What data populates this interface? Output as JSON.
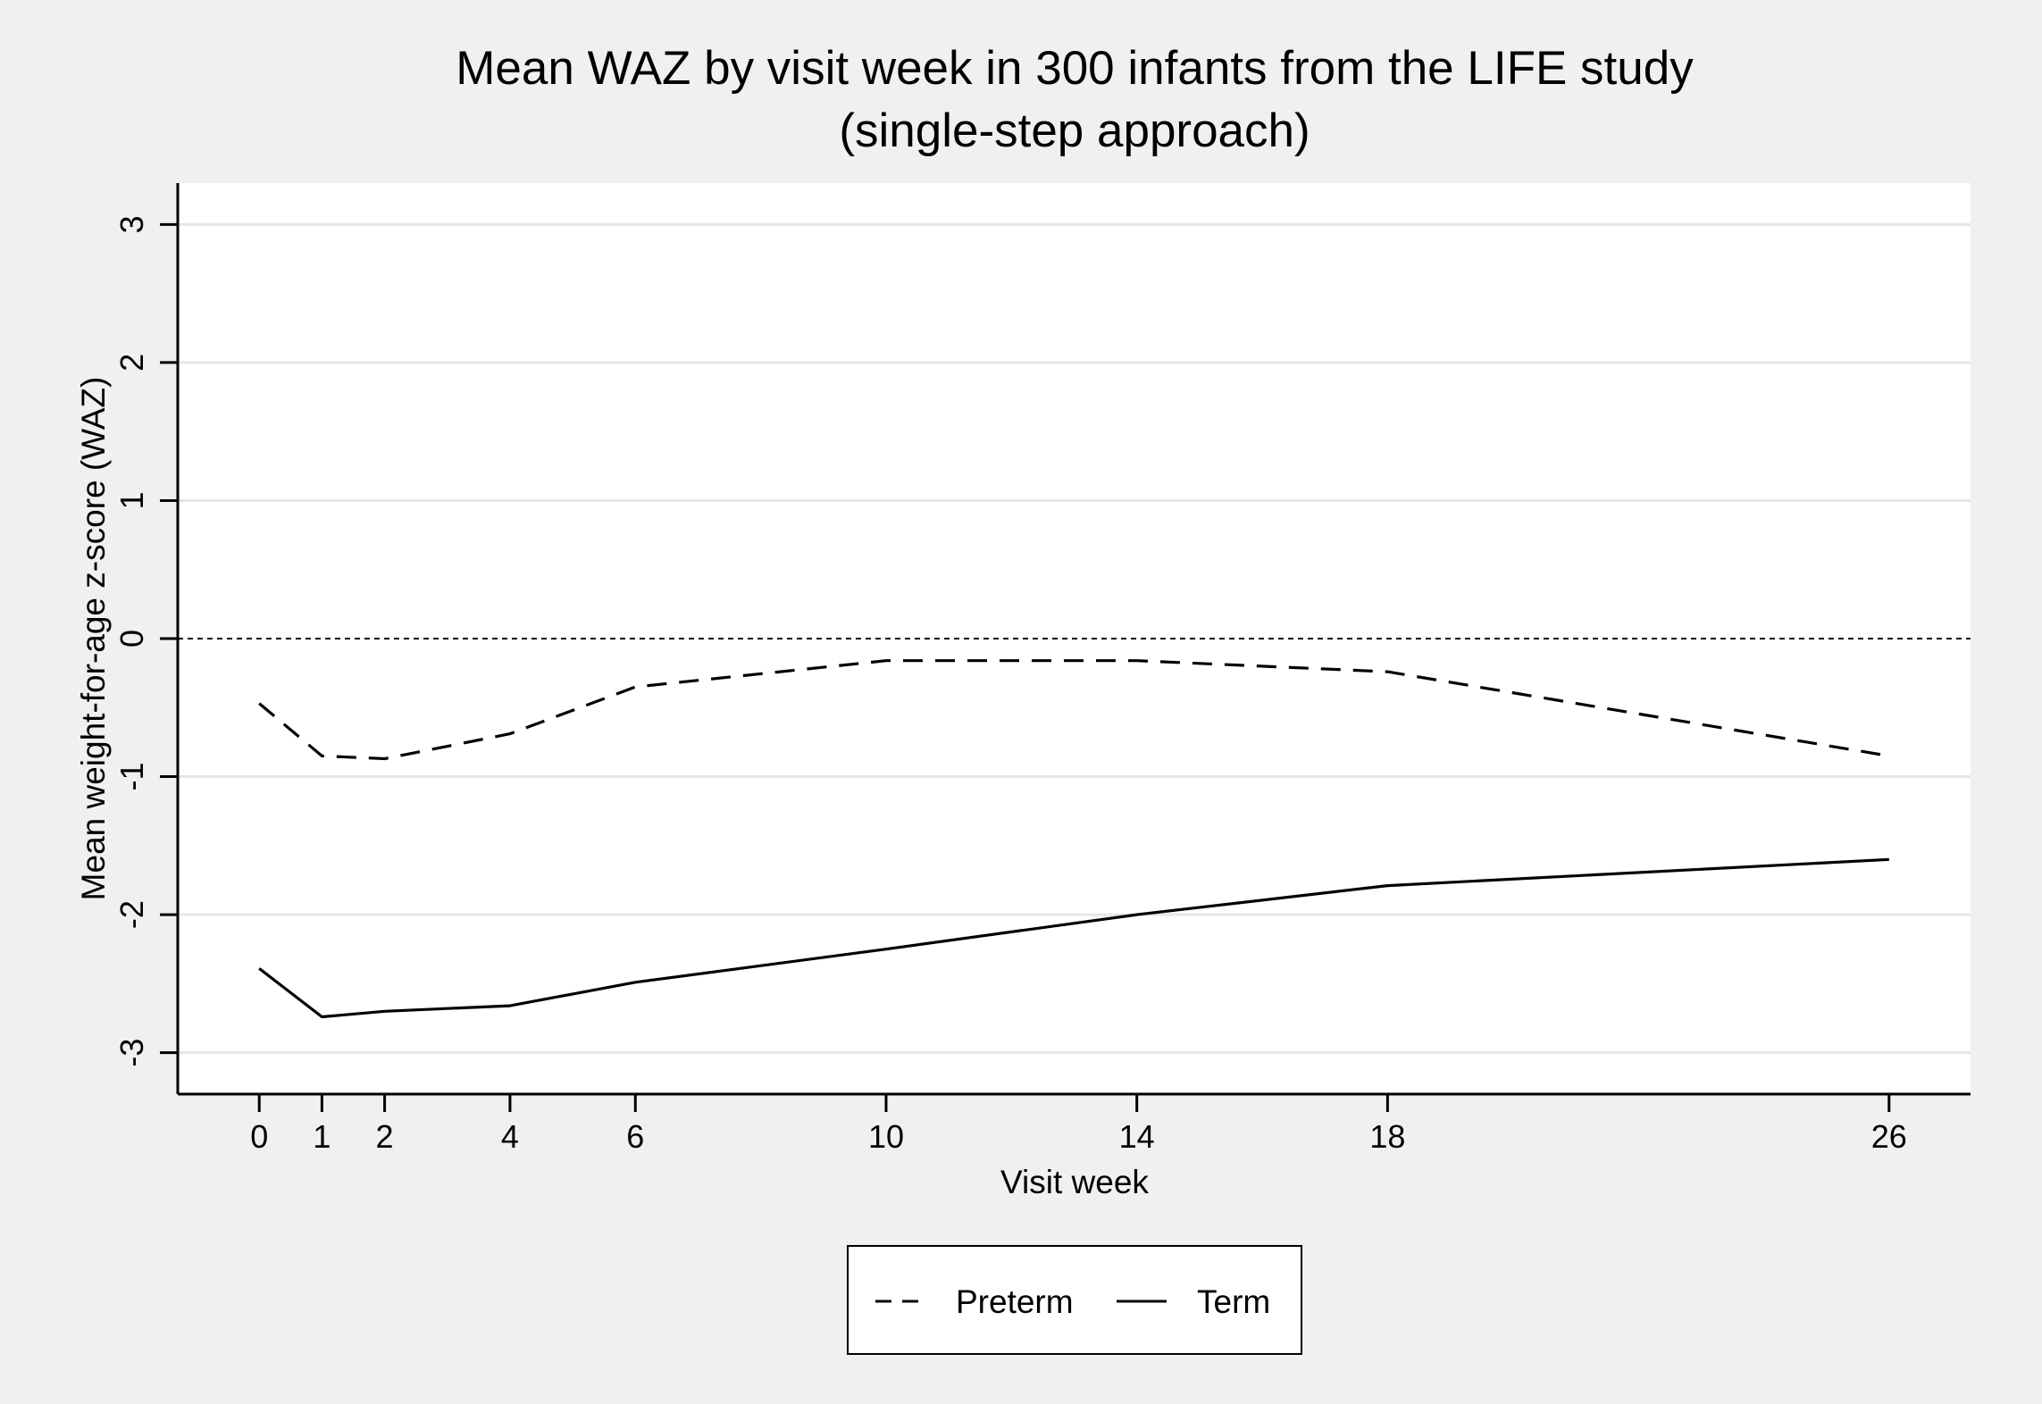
{
  "chart_data": {
    "type": "line",
    "title": "Mean WAZ by visit week in 300 infants from the LIFE study",
    "subtitle": "(single-step approach)",
    "xlabel": "Visit week",
    "ylabel": "Mean weight-for-age z-score (WAZ)",
    "x": [
      0,
      1,
      2,
      4,
      6,
      10,
      14,
      18,
      26
    ],
    "xticks": [
      "0",
      "1",
      "2",
      "4",
      "6",
      "10",
      "14",
      "18",
      "26"
    ],
    "xlim": [
      -1.3,
      27.3
    ],
    "yticks": [
      "-3",
      "-2",
      "-1",
      "0",
      "1",
      "2",
      "3"
    ],
    "ylim": [
      -3.3,
      3.3
    ],
    "grid": true,
    "reference_line": 0,
    "legend_position": "bottom",
    "series": [
      {
        "name": "Preterm",
        "style": "dashed",
        "color": "#000000",
        "values": [
          -0.47,
          -0.85,
          -0.87,
          -0.69,
          -0.35,
          -0.16,
          -0.16,
          -0.24,
          -0.85
        ]
      },
      {
        "name": "Term",
        "style": "solid",
        "color": "#000000",
        "values": [
          -2.39,
          -2.74,
          -2.7,
          -2.66,
          -2.49,
          -2.25,
          -2.0,
          -1.79,
          -1.6
        ]
      }
    ]
  },
  "colors": {
    "outer_background": "#f0f0f0",
    "plot_background": "#ffffff",
    "gridline": "#e6e6e6",
    "ink": "#000000"
  }
}
